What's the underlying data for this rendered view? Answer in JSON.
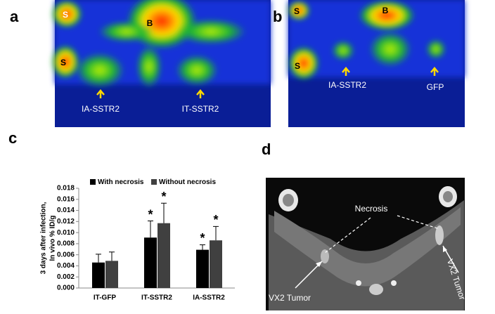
{
  "panels": [
    {
      "label": "a",
      "annotations": [
        "S",
        "B",
        "S",
        "IA-SSTR2",
        "IT-SSTR2"
      ]
    },
    {
      "label": "b",
      "annotations": [
        "S",
        "B",
        "S",
        "IA-SSTR2",
        "GFP"
      ]
    },
    {
      "label": "c"
    },
    {
      "label": "d",
      "annotations": [
        "Necrosis",
        "VX2 Tumor",
        "VX2 Tumor"
      ]
    }
  ],
  "chart_data": {
    "type": "bar",
    "ylabel": [
      "3 days after infection,",
      "In vivo % ID/g"
    ],
    "categories": [
      "IT-GFP",
      "IT-SSTR2",
      "IA-SSTR2"
    ],
    "series": [
      {
        "name": "With necrosis",
        "color": "#000000",
        "values": [
          0.0046,
          0.0091,
          0.0069
        ],
        "errors": [
          0.0015,
          0.003,
          0.0009
        ],
        "markers": [
          null,
          "*",
          "*"
        ]
      },
      {
        "name": "Without necrosis",
        "color": "#404040",
        "values": [
          0.0049,
          0.0117,
          0.0086
        ],
        "errors": [
          0.0016,
          0.0036,
          0.0025
        ],
        "markers": [
          null,
          "*",
          "*"
        ]
      }
    ],
    "ylim": [
      0,
      0.018
    ],
    "yticks": [
      {
        "value": 0,
        "label": "0.000"
      },
      {
        "value": 0.002,
        "label": "0.002"
      },
      {
        "value": 0.004,
        "label": "0.004"
      },
      {
        "value": 0.006,
        "label": "0.006"
      },
      {
        "value": 0.008,
        "label": "0.008"
      },
      {
        "value": 0.01,
        "label": "0.010"
      },
      {
        "value": 0.012,
        "label": "0.012"
      },
      {
        "value": 0.014,
        "label": "0.014"
      },
      {
        "value": 0.016,
        "label": "0.016"
      },
      {
        "value": 0.018,
        "label": "0.018"
      }
    ],
    "legend": "top"
  }
}
